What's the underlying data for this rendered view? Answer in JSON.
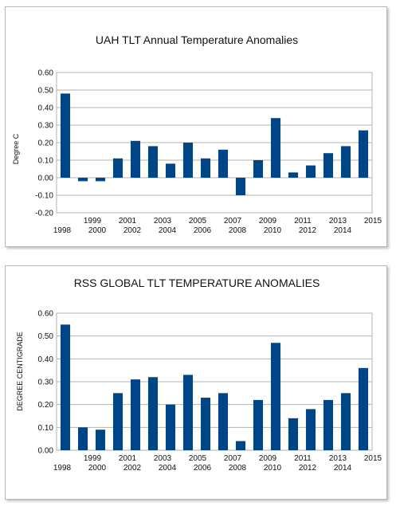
{
  "chart_data": [
    {
      "type": "bar",
      "title": "UAH TLT Annual Temperature Anomalies",
      "xlabel": "",
      "ylabel": "Degree C",
      "categories": [
        "1998",
        "1999",
        "2000",
        "2001",
        "2002",
        "2003",
        "2004",
        "2005",
        "2006",
        "2007",
        "2008",
        "2009",
        "2010",
        "2011",
        "2012",
        "2013",
        "2014",
        "2015"
      ],
      "values": [
        0.48,
        -0.02,
        -0.02,
        0.11,
        0.21,
        0.18,
        0.08,
        0.2,
        0.11,
        0.16,
        -0.1,
        0.1,
        0.34,
        0.03,
        0.07,
        0.14,
        0.18,
        0.27
      ],
      "ylim": [
        -0.2,
        0.6
      ],
      "yticks": [
        "-0.20",
        "-0.10",
        "0.00",
        "0.10",
        "0.20",
        "0.30",
        "0.40",
        "0.50",
        "0.60"
      ],
      "grid": true,
      "bar_color": "#004586"
    },
    {
      "type": "bar",
      "title": "RSS GLOBAL TLT TEMPERATURE ANOMALIES",
      "xlabel": "",
      "ylabel": "DEGREE CENTIGRADE",
      "categories": [
        "1998",
        "1999",
        "2000",
        "2001",
        "2002",
        "2003",
        "2004",
        "2005",
        "2006",
        "2007",
        "2008",
        "2009",
        "2010",
        "2011",
        "2012",
        "2013",
        "2014",
        "2015"
      ],
      "values": [
        0.55,
        0.1,
        0.09,
        0.25,
        0.31,
        0.32,
        0.2,
        0.33,
        0.23,
        0.25,
        0.04,
        0.22,
        0.47,
        0.14,
        0.18,
        0.22,
        0.25,
        0.36
      ],
      "ylim": [
        0,
        0.6
      ],
      "yticks": [
        "0.00",
        "0.10",
        "0.20",
        "0.30",
        "0.40",
        "0.50",
        "0.60"
      ],
      "grid": true,
      "bar_color": "#004586"
    }
  ]
}
